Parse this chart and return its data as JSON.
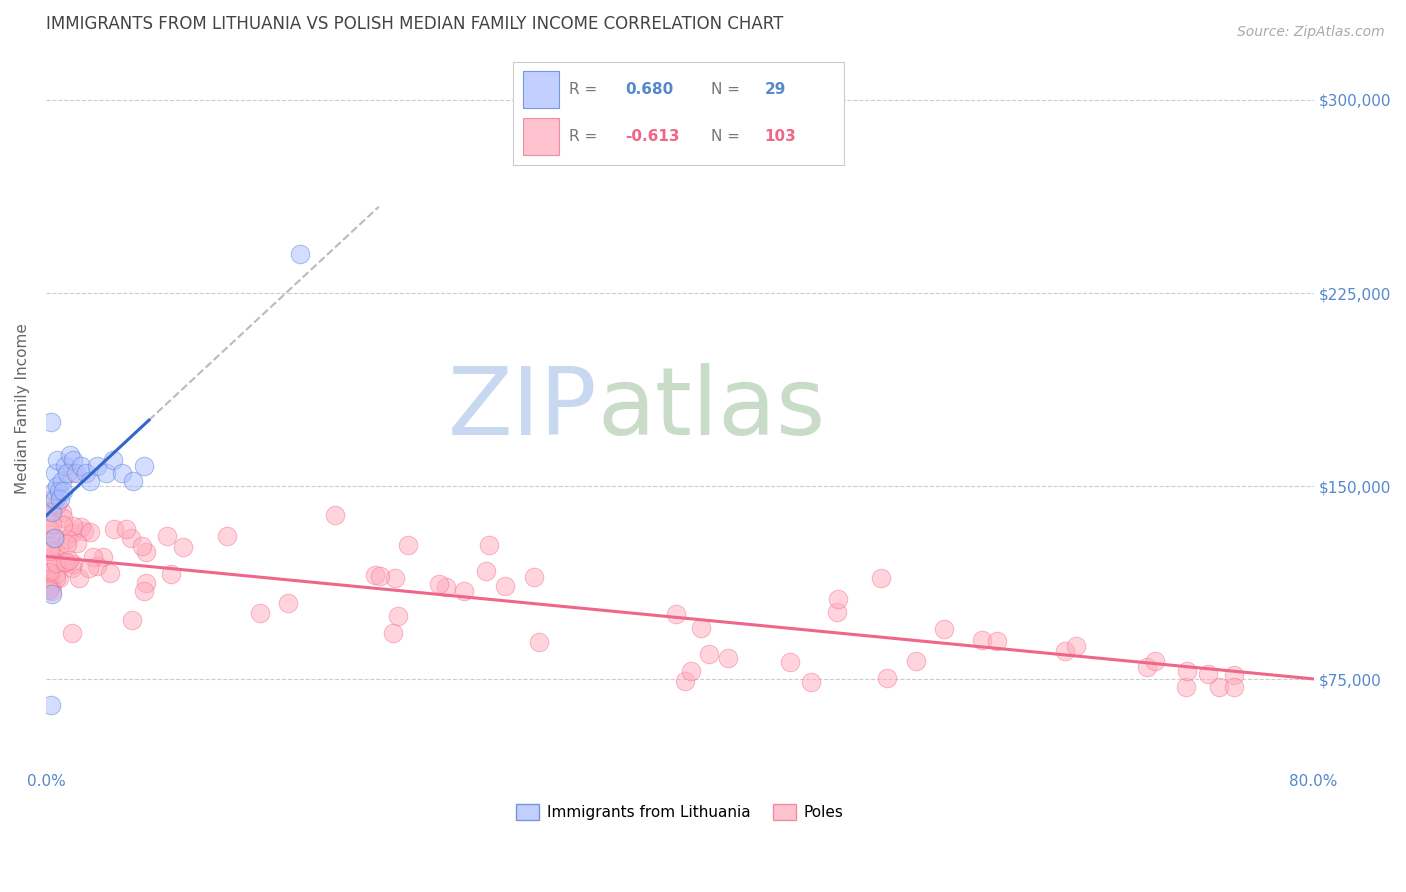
{
  "title": "IMMIGRANTS FROM LITHUANIA VS POLISH MEDIAN FAMILY INCOME CORRELATION CHART",
  "source": "Source: ZipAtlas.com",
  "ylabel": "Median Family Income",
  "xlim": [
    0.0,
    0.8
  ],
  "ylim": [
    40000,
    320000
  ],
  "yticks": [
    75000,
    150000,
    225000,
    300000
  ],
  "ytick_labels": [
    "$75,000",
    "$150,000",
    "$225,000",
    "$300,000"
  ],
  "xtick_positions": [
    0.0,
    0.1,
    0.2,
    0.3,
    0.4,
    0.5,
    0.6,
    0.7,
    0.8
  ],
  "xtick_labels": [
    "0.0%",
    "",
    "",
    "",
    "",
    "",
    "",
    "",
    "80.0%"
  ],
  "background_color": "#ffffff",
  "grid_color": "#cccccc",
  "blue_fill": "#aabbff",
  "blue_edge": "#4477cc",
  "pink_fill": "#ffaabb",
  "pink_edge": "#ee6688",
  "line_blue": "#3366cc",
  "line_pink": "#ee6688",
  "dash_color": "#bbbbbb",
  "title_color": "#444444",
  "ylabel_color": "#666666",
  "tick_color": "#5588cc",
  "source_color": "#aaaaaa",
  "watermark_zip_color": "#c8d8f0",
  "watermark_atlas_color": "#c8dcc8",
  "legend_border_color": "#cccccc",
  "bottom_legend_label1": "Immigrants from Lithuania",
  "bottom_legend_label2": "Poles"
}
